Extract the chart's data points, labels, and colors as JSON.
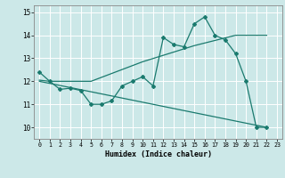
{
  "xlabel": "Humidex (Indice chaleur)",
  "background_color": "#cce8e8",
  "line_color": "#1a7a6e",
  "grid_color": "#ffffff",
  "xlim": [
    -0.5,
    23.5
  ],
  "ylim": [
    9.5,
    15.3
  ],
  "yticks": [
    10,
    11,
    12,
    13,
    14,
    15
  ],
  "xticks": [
    0,
    1,
    2,
    3,
    4,
    5,
    6,
    7,
    8,
    9,
    10,
    11,
    12,
    13,
    14,
    15,
    16,
    17,
    18,
    19,
    20,
    21,
    22,
    23
  ],
  "line1_x": [
    0,
    1,
    2,
    3,
    4,
    5,
    6,
    7,
    8,
    9,
    10,
    11,
    12,
    13,
    14,
    15,
    16,
    17,
    18,
    19,
    20,
    21,
    22
  ],
  "line1_y": [
    12.4,
    12.0,
    11.65,
    11.7,
    11.6,
    11.0,
    11.0,
    11.15,
    11.8,
    12.0,
    12.2,
    11.8,
    13.9,
    13.6,
    13.5,
    14.5,
    14.8,
    14.0,
    13.8,
    13.2,
    12.0,
    10.0,
    10.0
  ],
  "line2_x": [
    0,
    1,
    2,
    3,
    4,
    5,
    10,
    15,
    19,
    22
  ],
  "line2_y": [
    12.05,
    12.0,
    12.0,
    12.0,
    12.0,
    12.0,
    12.85,
    13.55,
    14.0,
    14.0
  ],
  "line3_x": [
    0,
    22
  ],
  "line3_y": [
    12.0,
    10.0
  ]
}
